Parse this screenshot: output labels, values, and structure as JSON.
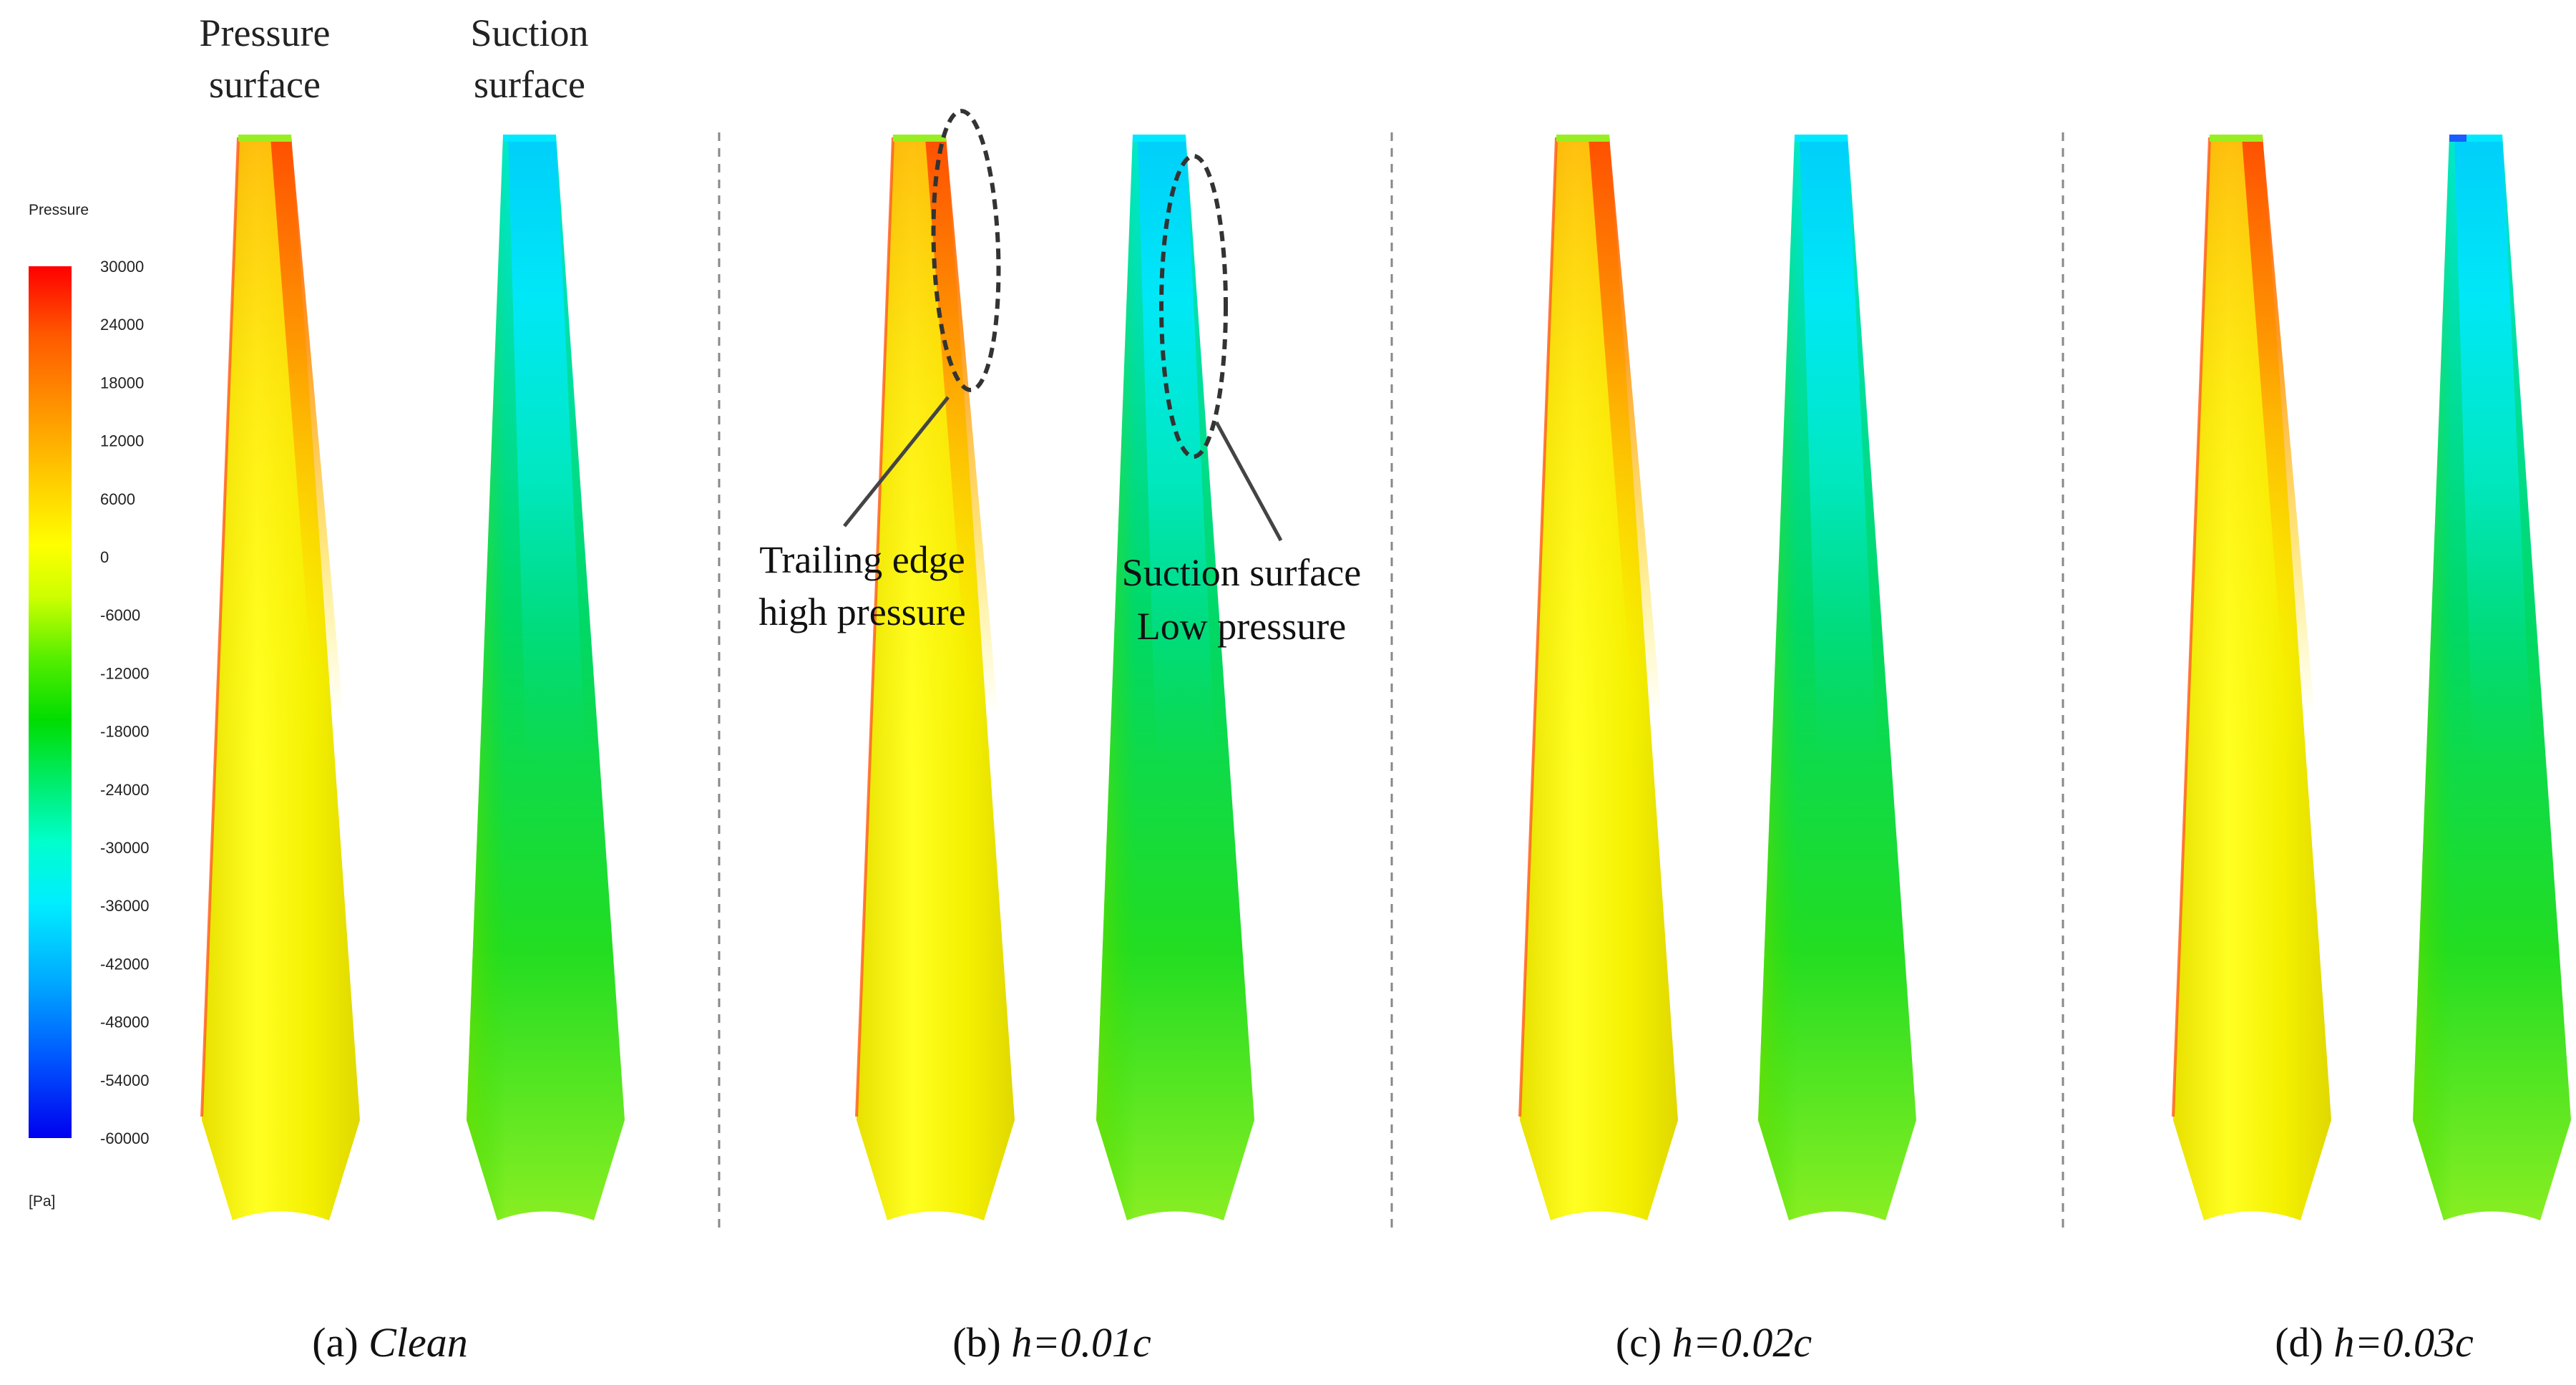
{
  "header_labels": {
    "pressure_surface": [
      "Pressure",
      "surface"
    ],
    "suction_surface": [
      "Suction",
      "surface"
    ]
  },
  "legend": {
    "title": "Pressure",
    "unit": "[Pa]",
    "ticks": [
      "30000",
      "24000",
      "18000",
      "12000",
      "6000",
      "0",
      "-6000",
      "-12000",
      "-18000",
      "-24000",
      "-30000",
      "-36000",
      "-42000",
      "-48000",
      "-54000",
      "-60000"
    ],
    "colors": [
      "#ff0000",
      "#ff5a00",
      "#ff9900",
      "#ffcc00",
      "#ffff00",
      "#ccff00",
      "#66ee00",
      "#00dd00",
      "#00ee66",
      "#00ffcc",
      "#00eeff",
      "#00bbff",
      "#0077ff",
      "#0033ff",
      "#0000ee"
    ]
  },
  "annotations": {
    "trailing_edge": [
      "Trailing edge",
      "high pressure"
    ],
    "suction_low": [
      "Suction surface",
      "Low pressure"
    ]
  },
  "panels": [
    {
      "prefix": "(a) ",
      "label": "Clean"
    },
    {
      "prefix": "(b) ",
      "label": "h=0.01c"
    },
    {
      "prefix": "(c) ",
      "label": "h=0.02c"
    },
    {
      "prefix": "(d) ",
      "label": "h=0.03c"
    }
  ]
}
